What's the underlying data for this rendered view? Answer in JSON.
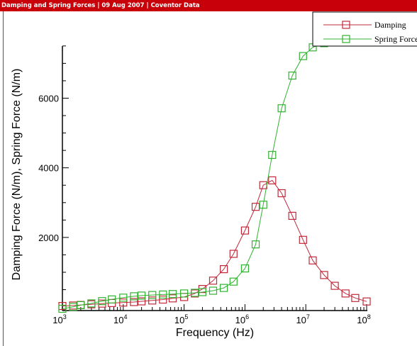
{
  "header": {
    "title": "Damping and Spring Forces",
    "sep1": "|",
    "date": "09 Aug 2007",
    "sep2": "|",
    "source": "Coventor Data"
  },
  "chart_data": {
    "type": "line",
    "xlabel": "Frequency (Hz)",
    "ylabel": "Damping Force (N/m), Spring Force (N/m)",
    "xscale": "log",
    "xlim": [
      1000,
      100000000
    ],
    "ylim": [
      -100,
      7700
    ],
    "xticks": [
      {
        "value": 1000,
        "base": "10",
        "exp": "3"
      },
      {
        "value": 10000,
        "base": "10",
        "exp": "4"
      },
      {
        "value": 100000,
        "base": "10",
        "exp": "5"
      },
      {
        "value": 1000000,
        "base": "10",
        "exp": "6"
      },
      {
        "value": 10000000,
        "base": "10",
        "exp": "7"
      },
      {
        "value": 100000000,
        "base": "10",
        "exp": "8"
      }
    ],
    "yticks": [
      2000,
      4000,
      6000
    ],
    "yminor": [
      500,
      1000,
      1500,
      2500,
      3000,
      3500,
      4500,
      5000,
      5500,
      6500,
      7000,
      7500
    ],
    "legend_placement": "top-right",
    "series": [
      {
        "name": "Damping",
        "color": "#c0283a",
        "x": [
          1000,
          1500,
          2000,
          3000,
          4500,
          6500,
          10000,
          15000,
          20000,
          30000,
          45000,
          65000,
          100000,
          150000,
          200000,
          300000,
          450000,
          650000,
          1000000,
          1500000,
          2000000,
          2800000,
          4000000,
          6000000,
          9000000,
          13000000,
          20000000,
          30000000,
          45000000,
          65000000,
          100000000
        ],
        "values": [
          30,
          45,
          60,
          80,
          100,
          115,
          130,
          145,
          165,
          190,
          215,
          250,
          290,
          390,
          520,
          760,
          1090,
          1530,
          2200,
          2880,
          3500,
          3640,
          3270,
          2620,
          1930,
          1340,
          920,
          610,
          390,
          260,
          160
        ]
      },
      {
        "name": "Spring Force",
        "color": "#30b230",
        "x": [
          1000,
          1500,
          2000,
          3000,
          4500,
          6500,
          10000,
          15000,
          20000,
          30000,
          45000,
          65000,
          100000,
          150000,
          200000,
          300000,
          450000,
          650000,
          1000000,
          1500000,
          2000000,
          2800000,
          4000000,
          6000000,
          9000000,
          13000000,
          20000000,
          30000000,
          45000000,
          65000000,
          100000000
        ],
        "values": [
          -50,
          5,
          55,
          105,
          170,
          220,
          270,
          310,
          330,
          345,
          360,
          375,
          390,
          410,
          430,
          470,
          550,
          730,
          1110,
          1800,
          2940,
          4370,
          5710,
          6650,
          7210,
          7460,
          7580,
          7640,
          7670,
          7680,
          7690
        ]
      }
    ]
  }
}
